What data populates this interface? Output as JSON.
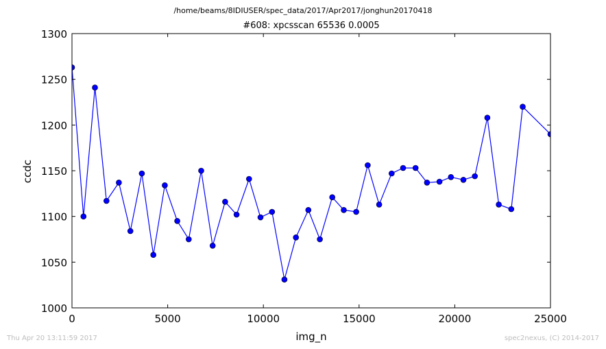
{
  "figure": {
    "suptitle": "/home/beams/8IDIUSER/spec_data/2017/Apr2017/jonghun20170418",
    "footer_left": "Thu Apr 20 13:11:59 2017",
    "footer_right": "spec2nexus, (C) 2014-2017"
  },
  "chart_data": {
    "type": "line",
    "title": "#608: xpcsscan 65536 0.0005",
    "xlabel": "img_n",
    "ylabel": "ccdc",
    "xlim": [
      0,
      25000
    ],
    "ylim": [
      1000,
      1300
    ],
    "xticks": [
      0,
      5000,
      10000,
      15000,
      20000,
      25000
    ],
    "yticks": [
      1000,
      1050,
      1100,
      1150,
      1200,
      1250,
      1300
    ],
    "grid": false,
    "legend": false,
    "marker": "circle",
    "color": "#0000ff",
    "series": [
      {
        "x": [
          0,
          600,
          1200,
          1800,
          2450,
          3050,
          3650,
          4250,
          4850,
          5500,
          6100,
          6750,
          7350,
          8000,
          8600,
          9250,
          9850,
          10450,
          11100,
          11700,
          12350,
          12950,
          13600,
          14200,
          14850,
          15450,
          16050,
          16700,
          17300,
          17950,
          18550,
          19200,
          19800,
          20450,
          21050,
          21700,
          22300,
          22950,
          23550,
          25000
        ],
        "y": [
          1263,
          1100,
          1241,
          1117,
          1137,
          1084,
          1147,
          1058,
          1134,
          1095,
          1075,
          1150,
          1068,
          1116,
          1102,
          1141,
          1099,
          1105,
          1031,
          1077,
          1107,
          1075,
          1121,
          1107,
          1105,
          1156,
          1113,
          1147,
          1153,
          1153,
          1137,
          1138,
          1143,
          1140,
          1144,
          1208,
          1113,
          1108,
          1220,
          1190
        ]
      }
    ]
  }
}
